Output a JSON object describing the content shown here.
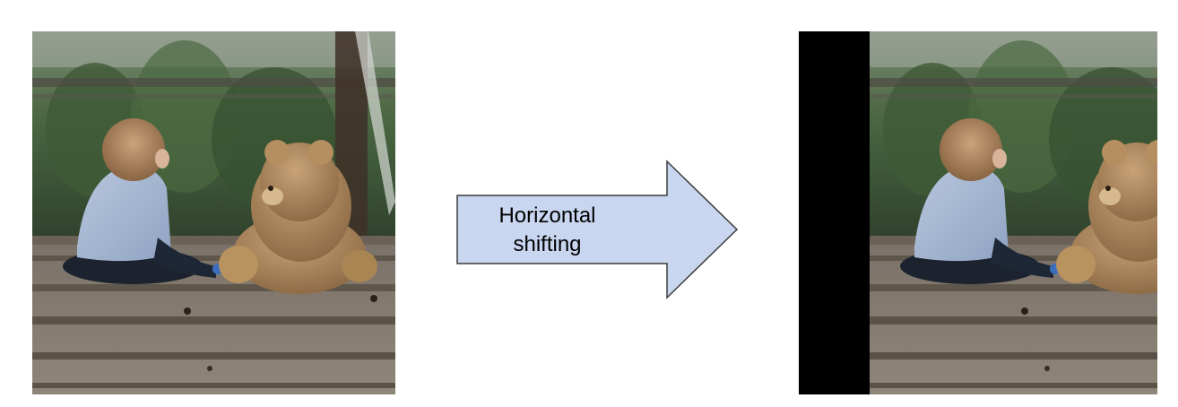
{
  "diagram": {
    "arrow_label": "Horizontal\nshifting"
  },
  "colors": {
    "arrow_fill": "#c9d6f0",
    "arrow_stroke": "#3b3b3b",
    "shift_bar": "#000000"
  }
}
